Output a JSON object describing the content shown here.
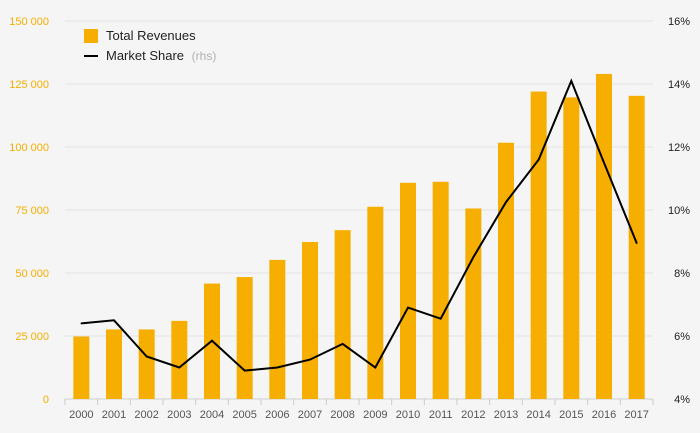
{
  "chart_data": {
    "type": "bar",
    "title": "",
    "categories": [
      "2000",
      "2001",
      "2002",
      "2003",
      "2004",
      "2005",
      "2006",
      "2007",
      "2008",
      "2009",
      "2010",
      "2011",
      "2012",
      "2013",
      "2014",
      "2015",
      "2016",
      "2017"
    ],
    "series": [
      {
        "name": "Total Revenues",
        "type": "bar",
        "axis": "left",
        "color": "#f6ae00",
        "values": [
          24800,
          27600,
          27600,
          31000,
          45800,
          48400,
          55200,
          62300,
          67000,
          76300,
          85800,
          86200,
          75600,
          101700,
          122000,
          119700,
          129000,
          120300
        ]
      },
      {
        "name": "Market Share",
        "qualifier": "(rhs)",
        "type": "line",
        "axis": "right",
        "color": "#000000",
        "values": [
          6.4,
          6.5,
          5.35,
          5.0,
          5.85,
          4.9,
          5.0,
          5.25,
          5.75,
          5.0,
          6.9,
          6.55,
          8.5,
          10.25,
          11.6,
          14.1,
          11.5,
          8.95
        ]
      }
    ],
    "left_axis": {
      "ylim": [
        0,
        150000
      ],
      "ticks": [
        0,
        25000,
        50000,
        75000,
        100000,
        125000,
        150000
      ],
      "tick_labels": [
        "0",
        "25 000",
        "50 000",
        "75 000",
        "100 000",
        "125 000",
        "150 000"
      ],
      "color": "#f6ae00"
    },
    "right_axis": {
      "ylim": [
        4,
        16
      ],
      "ticks": [
        4,
        6,
        8,
        10,
        12,
        14,
        16
      ],
      "tick_labels": [
        "4%",
        "6%",
        "8%",
        "10%",
        "12%",
        "14%",
        "16%"
      ]
    },
    "legend": {
      "position": "top-left",
      "entries": [
        {
          "label": "Total Revenues",
          "swatch": "bar"
        },
        {
          "label": "Market Share",
          "suffix": "(rhs)",
          "swatch": "line"
        }
      ]
    },
    "grid": true
  }
}
